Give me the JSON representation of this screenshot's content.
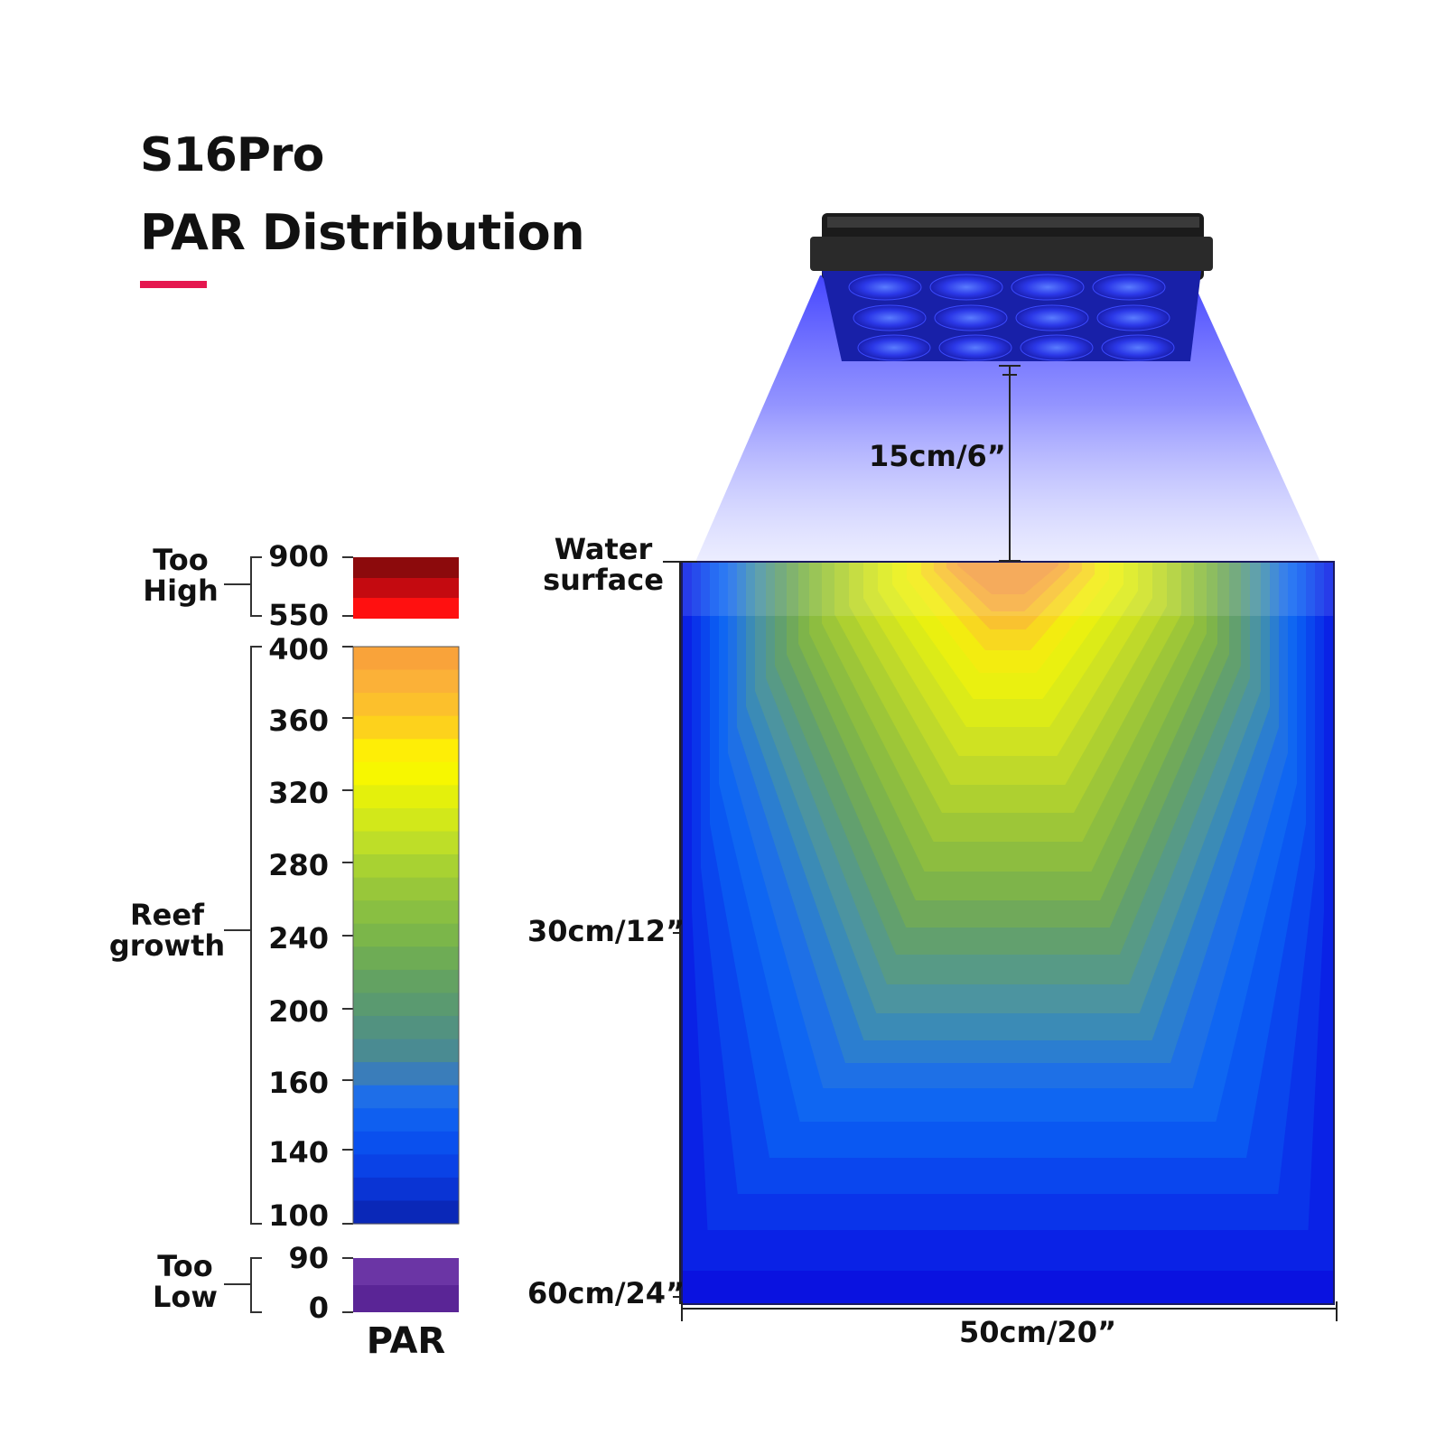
{
  "header": {
    "title_line1": "S16Pro",
    "title_line2": "PAR Distribution",
    "accent_color": "#e5174f"
  },
  "legend": {
    "axis_label": "PAR",
    "groups": [
      {
        "label": "Too High",
        "range": [
          550,
          900
        ],
        "ticks": [
          "900",
          "550"
        ],
        "colors": [
          "#8c0a0c",
          "#c40a10",
          "#ff1010"
        ]
      },
      {
        "label": "Reef growth",
        "range": [
          100,
          400
        ],
        "ticks": [
          "400",
          "360",
          "320",
          "280",
          "240",
          "200",
          "160",
          "140",
          "100"
        ]
      },
      {
        "label": "Too Low",
        "range": [
          0,
          90
        ],
        "ticks": [
          "90",
          "0"
        ],
        "colors": [
          "#6b35a5",
          "#5a2596"
        ]
      }
    ]
  },
  "diagram": {
    "fixture_icon": "led-light-fixture-icon",
    "fixture_to_surface": "15cm/6”",
    "surface_label": "Water surface",
    "mid_depth": "30cm/12”",
    "bottom_depth": "60cm/24”",
    "width": "50cm/20”",
    "beam_color": "#3b3cff"
  }
}
